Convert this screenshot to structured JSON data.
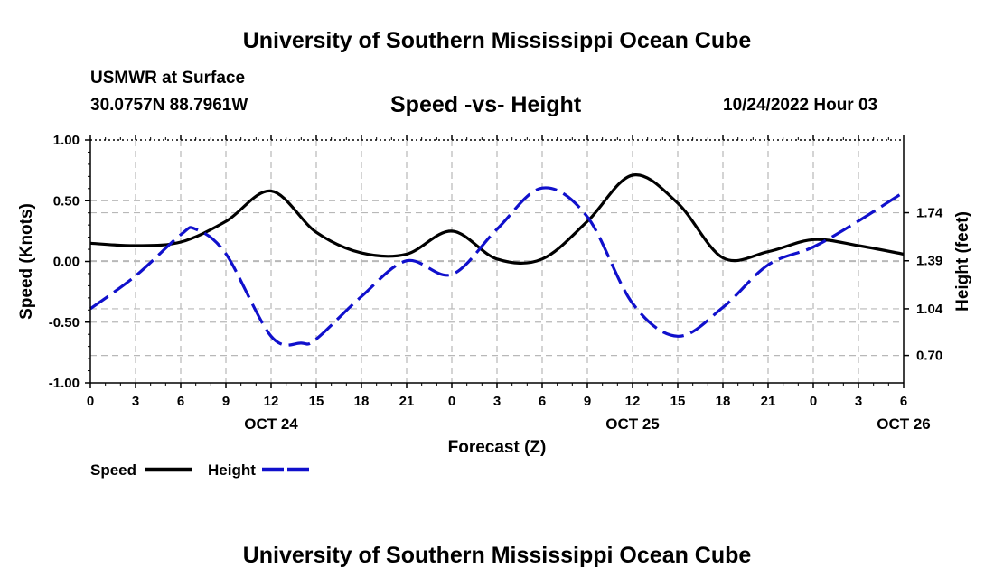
{
  "header": {
    "title_top": "University of Southern Mississippi Ocean Cube",
    "title_bottom": "University of Southern Mississippi Ocean Cube",
    "station": "USMWR at Surface",
    "coords": "30.0757N  88.7961W",
    "datetime": "10/24/2022 Hour 03"
  },
  "colors": {
    "speed": "#000000",
    "height": "#1010cc",
    "grid": "#b8b8b8"
  },
  "chart_data": {
    "type": "line",
    "title": "Speed -vs- Height",
    "xlabel": "Forecast (Z)",
    "ylabel": "Speed (Knots)",
    "y2label": "Height (feet)",
    "x_ticks": [
      "0",
      "3",
      "6",
      "9",
      "12",
      "15",
      "18",
      "21",
      "0",
      "3",
      "6",
      "9",
      "12",
      "15",
      "18",
      "21",
      "0",
      "3",
      "6"
    ],
    "date_labels": [
      {
        "label": "OCT 24",
        "hour": 12
      },
      {
        "label": "OCT 25",
        "hour": 36
      },
      {
        "label": "OCT 26",
        "hour": 54
      }
    ],
    "xlim": [
      0,
      54
    ],
    "ylim": [
      -1.0,
      1.0
    ],
    "y_ticks": [
      "1.00",
      "0.50",
      "0.00",
      "-0.50",
      "-1.00"
    ],
    "y_tick_values": [
      1.0,
      0.5,
      0.0,
      -0.5,
      -1.0
    ],
    "y2lim": [
      0.5,
      2.27
    ],
    "y2_ticks": [
      "1.74",
      "1.39",
      "1.04",
      "0.70"
    ],
    "y2_tick_values": [
      1.74,
      1.39,
      1.04,
      0.7
    ],
    "series": [
      {
        "name": "Speed",
        "axis": "left",
        "style": "solid",
        "x": [
          0,
          3,
          6,
          9,
          12,
          15,
          18,
          21,
          24,
          27,
          30,
          33,
          36,
          39,
          42,
          45,
          48,
          51,
          54
        ],
        "values": [
          0.15,
          0.13,
          0.16,
          0.33,
          0.58,
          0.24,
          0.07,
          0.06,
          0.25,
          0.02,
          0.02,
          0.33,
          0.71,
          0.48,
          0.03,
          0.08,
          0.18,
          0.13,
          0.06
        ]
      },
      {
        "name": "Height",
        "axis": "right",
        "style": "dashed",
        "x": [
          0,
          3,
          6,
          7,
          9,
          12,
          14,
          15,
          18,
          21,
          24,
          27,
          30,
          33,
          36,
          39,
          42,
          45,
          48,
          51,
          54
        ],
        "values": [
          1.04,
          1.28,
          1.58,
          1.62,
          1.44,
          0.84,
          0.79,
          0.82,
          1.13,
          1.39,
          1.29,
          1.62,
          1.92,
          1.71,
          1.08,
          0.84,
          1.05,
          1.36,
          1.49,
          1.68,
          1.89
        ]
      }
    ],
    "legend": [
      {
        "label": "Speed",
        "style": "solid"
      },
      {
        "label": "Height",
        "style": "dashed"
      }
    ]
  }
}
